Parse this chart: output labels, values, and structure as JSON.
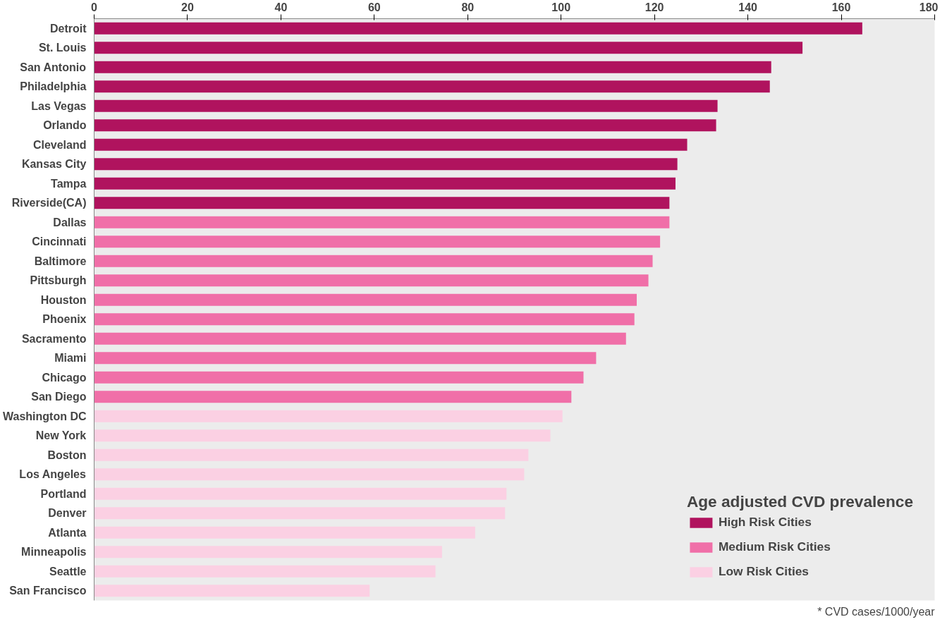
{
  "chart_data": {
    "type": "bar",
    "orientation": "horizontal",
    "legend_title": "Age adjusted CVD prevalence",
    "legend": "bottom right",
    "categories": [
      "Detroit",
      "St. Louis",
      "San Antonio",
      "Philadelphia",
      "Las Vegas",
      "Orlando",
      "Cleveland",
      "Kansas City",
      "Tampa",
      "Riverside(CA)",
      "Dallas",
      "Cincinnati",
      "Baltimore",
      "Pittsburgh",
      "Houston",
      "Phoenix",
      "Sacramento",
      "Miami",
      "Chicago",
      "San Diego",
      "Washington DC",
      "New York",
      "Boston",
      "Los Angeles",
      "Portland",
      "Denver",
      "Atlanta",
      "Minneapolis",
      "Seattle",
      "San Francisco"
    ],
    "series": [
      {
        "name": "High Risk Cities",
        "color": "#b0135e",
        "values": [
          164.5,
          151.7,
          145.0,
          144.7,
          133.5,
          133.2,
          127.0,
          124.9,
          124.5,
          123.2,
          null,
          null,
          null,
          null,
          null,
          null,
          null,
          null,
          null,
          null,
          null,
          null,
          null,
          null,
          null,
          null,
          null,
          null,
          null,
          null
        ]
      },
      {
        "name": "Medium Risk Cities",
        "color": "#f06fa8",
        "values": [
          null,
          null,
          null,
          null,
          null,
          null,
          null,
          null,
          null,
          null,
          123.2,
          121.2,
          119.6,
          118.7,
          116.2,
          115.7,
          113.9,
          107.5,
          104.8,
          102.2,
          null,
          null,
          null,
          null,
          null,
          null,
          null,
          null,
          null,
          null
        ]
      },
      {
        "name": "Low Risk Cities",
        "color": "#fbd0e3",
        "values": [
          null,
          null,
          null,
          null,
          null,
          null,
          null,
          null,
          null,
          null,
          null,
          null,
          null,
          null,
          null,
          null,
          null,
          null,
          null,
          null,
          100.3,
          97.7,
          93.0,
          92.1,
          88.3,
          88.0,
          81.6,
          74.5,
          73.1,
          59.0
        ]
      }
    ],
    "xlim": [
      0,
      180
    ],
    "xticks": [
      0,
      20,
      40,
      60,
      80,
      100,
      120,
      140,
      160,
      180
    ],
    "annotations": [
      "* CVD cases/1000/year"
    ]
  }
}
